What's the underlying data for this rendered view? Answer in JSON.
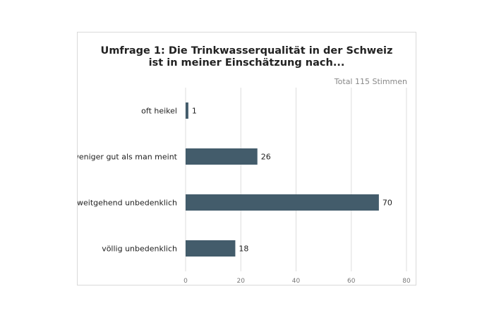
{
  "chart_data": {
    "type": "bar",
    "orientation": "horizontal",
    "title_lines": [
      "Umfrage 1: Die Trinkwasserqualität in der Schweiz",
      "ist in meiner Einschätzung nach..."
    ],
    "subtitle": "Total 115 Stimmen",
    "categories": [
      "oft heikel",
      "weniger gut als man meint",
      "weitgehend unbedenklich",
      "völlig unbedenklich"
    ],
    "values": [
      1,
      26,
      70,
      18
    ],
    "xlim": [
      0,
      80
    ],
    "xticks": [
      0,
      20,
      40,
      60,
      80
    ],
    "grid": true,
    "bar_color": "#435c6b",
    "grid_color": "#dddddd"
  }
}
